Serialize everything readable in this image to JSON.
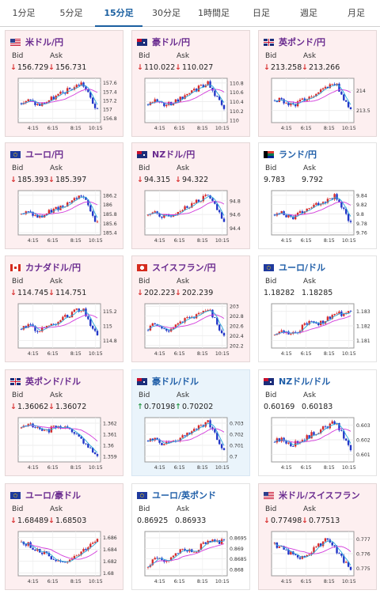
{
  "tabs": [
    {
      "label": "1分足",
      "active": false
    },
    {
      "label": "5分足",
      "active": false
    },
    {
      "label": "15分足",
      "active": true
    },
    {
      "label": "30分足",
      "active": false
    },
    {
      "label": "1時間足",
      "active": false
    },
    {
      "label": "日足",
      "active": false
    },
    {
      "label": "週足",
      "active": false
    },
    {
      "label": "月足",
      "active": false
    }
  ],
  "labels": {
    "bid": "Bid",
    "ask": "Ask"
  },
  "colors": {
    "up_candle": "#d62b2b",
    "down_candle": "#2236c8",
    "ma_short": "#2aa7d8",
    "ma_long": "#d23adb",
    "arrow_down": "#d93030",
    "arrow_up": "#2a9a4a"
  },
  "chart_data": [
    {
      "type": "candlestick",
      "pair": "米ドル/円",
      "x_ticks": [
        "4:15",
        "6:15",
        "8:15",
        "10:15"
      ],
      "y_ticks": [
        "157.6",
        "157.4",
        "157.2",
        "157",
        "156.8"
      ],
      "ylim": [
        156.7,
        157.7
      ],
      "trend": "rise-then-drop"
    },
    {
      "type": "candlestick",
      "pair": "豪ドル/円",
      "x_ticks": [
        "4:15",
        "6:15",
        "8:15",
        "10:15"
      ],
      "y_ticks": [
        "110.8",
        "110.6",
        "110.4",
        "110.2",
        "110"
      ],
      "ylim": [
        109.95,
        110.9
      ],
      "trend": "rise-then-drop"
    },
    {
      "type": "candlestick",
      "pair": "英ポンド/円",
      "x_ticks": [
        "4:15",
        "6:15",
        "8:15",
        "10:15"
      ],
      "y_ticks": [
        "214",
        "213.5"
      ],
      "ylim": [
        213.2,
        214.3
      ],
      "trend": "rise-then-drop"
    },
    {
      "type": "candlestick",
      "pair": "ユーロ/円",
      "x_ticks": [
        "4:15",
        "6:15",
        "8:15",
        "10:15"
      ],
      "y_ticks": [
        "186.2",
        "186",
        "185.8",
        "185.6",
        "185.4"
      ],
      "ylim": [
        185.35,
        186.3
      ],
      "trend": "rise-then-drop"
    },
    {
      "type": "candlestick",
      "pair": "NZドル/円",
      "x_ticks": [
        "4:15",
        "6:15",
        "8:15",
        "10:15"
      ],
      "y_ticks": [
        "94.8",
        "94.6",
        "94.4"
      ],
      "ylim": [
        94.3,
        94.95
      ],
      "trend": "rise-then-drop"
    },
    {
      "type": "candlestick",
      "pair": "ランド/円",
      "x_ticks": [
        "4:15",
        "6:15",
        "8:15",
        "10:15"
      ],
      "y_ticks": [
        "9.84",
        "9.82",
        "9.8",
        "9.78",
        "9.76"
      ],
      "ylim": [
        9.755,
        9.85
      ],
      "trend": "rise-then-drop"
    },
    {
      "type": "candlestick",
      "pair": "カナダドル/円",
      "x_ticks": [
        "4:15",
        "6:15",
        "8:15",
        "10:15"
      ],
      "y_ticks": [
        "115.2",
        "115",
        "114.8"
      ],
      "ylim": [
        114.7,
        115.3
      ],
      "trend": "rise-then-drop"
    },
    {
      "type": "candlestick",
      "pair": "スイスフラン/円",
      "x_ticks": [
        "4:15",
        "6:15",
        "8:15",
        "10:15"
      ],
      "y_ticks": [
        "203",
        "202.8",
        "202.6",
        "202.4",
        "202.2"
      ],
      "ylim": [
        202.15,
        203.05
      ],
      "trend": "rise-then-drop"
    },
    {
      "type": "candlestick",
      "pair": "ユーロ/ドル",
      "x_ticks": [
        "4:15",
        "6:15",
        "8:15",
        "10:15"
      ],
      "y_ticks": [
        "1.183",
        "1.182",
        "1.181"
      ],
      "ylim": [
        1.1805,
        1.1835
      ],
      "trend": "rise"
    },
    {
      "type": "candlestick",
      "pair": "英ポンド/ドル",
      "x_ticks": [
        "4:15",
        "6:15",
        "8:15",
        "10:15"
      ],
      "y_ticks": [
        "1.362",
        "1.361",
        "1.36",
        "1.359"
      ],
      "ylim": [
        1.3585,
        1.3625
      ],
      "trend": "flat-then-drop"
    },
    {
      "type": "candlestick",
      "pair": "豪ドル/ドル",
      "x_ticks": [
        "4:15",
        "6:15",
        "8:15",
        "10:15"
      ],
      "y_ticks": [
        "0.703",
        "0.702",
        "0.701",
        "0.7"
      ],
      "ylim": [
        0.6995,
        0.7035
      ],
      "trend": "rise-then-drop"
    },
    {
      "type": "candlestick",
      "pair": "NZドル/ドル",
      "x_ticks": [
        "4:15",
        "6:15",
        "8:15",
        "10:15"
      ],
      "y_ticks": [
        "0.603",
        "0.602",
        "0.601"
      ],
      "ylim": [
        0.6005,
        0.6035
      ],
      "trend": "rise-then-drop"
    },
    {
      "type": "candlestick",
      "pair": "ユーロ/豪ドル",
      "x_ticks": [
        "4:15",
        "6:15",
        "8:15",
        "10:15"
      ],
      "y_ticks": [
        "1.686",
        "1.684",
        "1.682",
        "1.68"
      ],
      "ylim": [
        1.6795,
        1.687
      ],
      "trend": "fall-then-rise"
    },
    {
      "type": "candlestick",
      "pair": "ユーロ/英ポンド",
      "x_ticks": [
        "4:15",
        "6:15",
        "8:15",
        "10:15"
      ],
      "y_ticks": [
        "0.8695",
        "0.869",
        "0.8685",
        "0.868"
      ],
      "ylim": [
        0.8677,
        0.8698
      ],
      "trend": "rise"
    },
    {
      "type": "candlestick",
      "pair": "米ドル/スイスフラン",
      "x_ticks": [
        "4:15",
        "6:15",
        "8:15",
        "10:15"
      ],
      "y_ticks": [
        "0.777",
        "0.776",
        "0.775"
      ],
      "ylim": [
        0.7745,
        0.7775
      ],
      "trend": "fall-rise-fall"
    }
  ],
  "cards": [
    {
      "name": "米ドル/円",
      "flag": "us-jp",
      "name_color": "purple",
      "bg": "pink",
      "bid": "156.729",
      "ask": "156.731",
      "bid_dir": "down",
      "ask_dir": "down"
    },
    {
      "name": "豪ドル/円",
      "flag": "au-jp",
      "name_color": "purple",
      "bg": "pink",
      "bid": "110.022",
      "ask": "110.027",
      "bid_dir": "down",
      "ask_dir": "down"
    },
    {
      "name": "英ポンド/円",
      "flag": "gb-jp",
      "name_color": "purple",
      "bg": "pink",
      "bid": "213.258",
      "ask": "213.266",
      "bid_dir": "down",
      "ask_dir": "down"
    },
    {
      "name": "ユーロ/円",
      "flag": "eu-jp",
      "name_color": "purple",
      "bg": "pink",
      "bid": "185.393",
      "ask": "185.397",
      "bid_dir": "down",
      "ask_dir": "down"
    },
    {
      "name": "NZドル/円",
      "flag": "nz-jp",
      "name_color": "purple",
      "bg": "pink",
      "bid": "94.315",
      "ask": "94.322",
      "bid_dir": "down",
      "ask_dir": "down"
    },
    {
      "name": "ランド/円",
      "flag": "za-jp",
      "name_color": "blue",
      "bg": "white",
      "bid": "9.783",
      "ask": "9.792",
      "bid_dir": "",
      "ask_dir": ""
    },
    {
      "name": "カナダドル/円",
      "flag": "ca-jp",
      "name_color": "purple",
      "bg": "pink",
      "bid": "114.745",
      "ask": "114.751",
      "bid_dir": "down",
      "ask_dir": "down"
    },
    {
      "name": "スイスフラン/円",
      "flag": "ch-jp",
      "name_color": "purple",
      "bg": "pink",
      "bid": "202.223",
      "ask": "202.239",
      "bid_dir": "down",
      "ask_dir": "down"
    },
    {
      "name": "ユーロ/ドル",
      "flag": "eu-us",
      "name_color": "blue",
      "bg": "white",
      "bid": "1.18282",
      "ask": "1.18285",
      "bid_dir": "",
      "ask_dir": ""
    },
    {
      "name": "英ポンド/ドル",
      "flag": "gb-us",
      "name_color": "purple",
      "bg": "pink",
      "bid": "1.36062",
      "ask": "1.36072",
      "bid_dir": "down",
      "ask_dir": "down"
    },
    {
      "name": "豪ドル/ドル",
      "flag": "au-us",
      "name_color": "blue",
      "bg": "blue",
      "bid": "0.70198",
      "ask": "0.70202",
      "bid_dir": "up",
      "ask_dir": "up"
    },
    {
      "name": "NZドル/ドル",
      "flag": "nz-us",
      "name_color": "blue",
      "bg": "white",
      "bid": "0.60169",
      "ask": "0.60183",
      "bid_dir": "",
      "ask_dir": ""
    },
    {
      "name": "ユーロ/豪ドル",
      "flag": "eu-au",
      "name_color": "purple",
      "bg": "pink",
      "bid": "1.68489",
      "ask": "1.68503",
      "bid_dir": "down",
      "ask_dir": "down"
    },
    {
      "name": "ユーロ/英ポンド",
      "flag": "eu-gb",
      "name_color": "blue",
      "bg": "white",
      "bid": "0.86925",
      "ask": "0.86933",
      "bid_dir": "",
      "ask_dir": ""
    },
    {
      "name": "米ドル/スイスフラン",
      "flag": "us-ch",
      "name_color": "purple",
      "bg": "pink",
      "bid": "0.77498",
      "ask": "0.77513",
      "bid_dir": "down",
      "ask_dir": "down"
    }
  ]
}
